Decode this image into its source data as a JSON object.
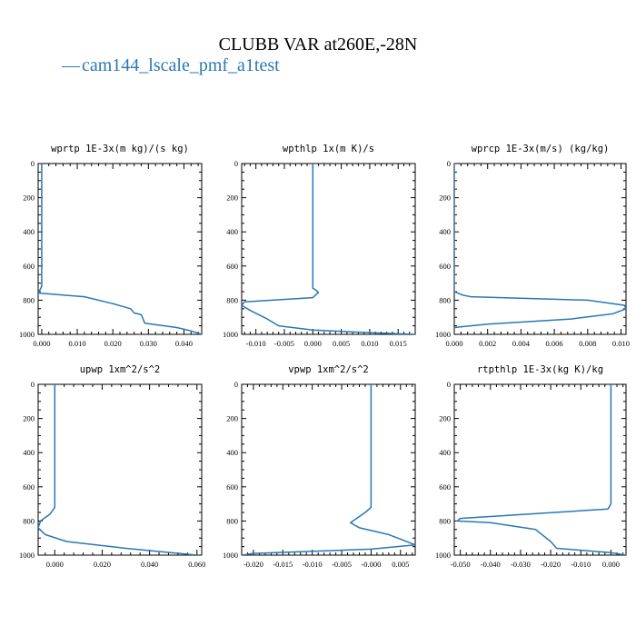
{
  "figure": {
    "title": "CLUBB VAR at260E,-28N",
    "legend": [
      {
        "name": "cam144_lscale_pmf_a1test",
        "marker": "—",
        "color": "#2a77b3"
      }
    ]
  },
  "chart_data": [
    {
      "type": "line",
      "title": "wprtp  1E-3x(m kg)/(s kg)",
      "xlim": [
        -0.001,
        0.045
      ],
      "ylim": [
        1000,
        0
      ],
      "xticks": [
        0.0,
        0.01,
        0.02,
        0.03,
        0.04
      ],
      "xtick_labels": [
        "0.000",
        "0.010",
        "0.020",
        "0.030",
        "0.040"
      ],
      "yticks": [
        0,
        200,
        400,
        600,
        800,
        1000
      ],
      "ytick_labels": [
        "0",
        "200",
        "400",
        "600",
        "800",
        "1000"
      ],
      "series": [
        {
          "color": "#2a77b3",
          "x": [
            0.0,
            0.0,
            0.0,
            0.0,
            -0.001,
            0.012,
            0.02,
            0.025,
            0.026,
            0.027,
            0.028,
            0.029,
            0.038,
            0.042,
            0.045
          ],
          "y": [
            0,
            200,
            400,
            720,
            758,
            780,
            820,
            850,
            875,
            880,
            885,
            935,
            960,
            980,
            1000
          ]
        }
      ]
    },
    {
      "type": "line",
      "title": "wpthlp  1x(m K)/s",
      "xlim": [
        -0.0125,
        0.018
      ],
      "ylim": [
        1000,
        0
      ],
      "xticks": [
        -0.01,
        -0.005,
        0.0,
        0.005,
        0.01,
        0.015
      ],
      "xtick_labels": [
        "-0.010",
        "-0.005",
        "0.000",
        "0.005",
        "0.010",
        "0.015"
      ],
      "yticks": [
        0,
        200,
        400,
        600,
        800,
        1000
      ],
      "ytick_labels": [
        "0",
        "200",
        "400",
        "600",
        "800",
        "1000"
      ],
      "series": [
        {
          "color": "#2a77b3",
          "x": [
            0.0,
            0.0,
            0.0,
            0.0005,
            0.001,
            0.0,
            -0.012,
            -0.0125,
            -0.011,
            -0.008,
            -0.006,
            0.0,
            0.01,
            0.018
          ],
          "y": [
            0,
            300,
            730,
            740,
            755,
            785,
            810,
            830,
            860,
            910,
            950,
            975,
            990,
            1000
          ]
        }
      ]
    },
    {
      "type": "line",
      "title": "wprcp  1E-3x(m/s) (kg/kg)",
      "xlim": [
        0.0,
        0.0103
      ],
      "ylim": [
        1000,
        0
      ],
      "xticks": [
        0.0,
        0.002,
        0.004,
        0.006,
        0.008,
        0.01
      ],
      "xtick_labels": [
        "0.000",
        "0.002",
        "0.004",
        "0.006",
        "0.008",
        "0.010"
      ],
      "yticks": [
        0,
        200,
        400,
        600,
        800,
        1000
      ],
      "ytick_labels": [
        "0",
        "200",
        "400",
        "600",
        "800",
        "1000"
      ],
      "series": [
        {
          "color": "#2a77b3",
          "x": [
            0.0,
            0.0,
            0.0,
            0.0005,
            0.001,
            0.008,
            0.0102,
            0.0103,
            0.0095,
            0.007,
            0.002,
            0.0005,
            0.0
          ],
          "y": [
            0,
            300,
            750,
            770,
            780,
            800,
            830,
            850,
            880,
            910,
            940,
            955,
            960
          ]
        }
      ]
    },
    {
      "type": "line",
      "title": "upwp  1xm^2/s^2",
      "xlim": [
        -0.007,
        0.062
      ],
      "ylim": [
        1000,
        0
      ],
      "xticks": [
        0.0,
        0.02,
        0.04,
        0.06
      ],
      "xtick_labels": [
        "0.000",
        "0.020",
        "0.040",
        "0.060"
      ],
      "yticks": [
        0,
        200,
        400,
        600,
        800,
        1000
      ],
      "ytick_labels": [
        "0",
        "200",
        "400",
        "600",
        "800",
        "1000"
      ],
      "series": [
        {
          "color": "#2a77b3",
          "x": [
            0.0,
            0.0,
            0.0,
            -0.002,
            -0.006,
            -0.007,
            -0.004,
            0.005,
            0.03,
            0.045,
            0.06
          ],
          "y": [
            0,
            300,
            720,
            760,
            800,
            840,
            880,
            920,
            960,
            980,
            1000
          ]
        }
      ]
    },
    {
      "type": "line",
      "title": "vpwp  1xm^2/s^2",
      "xlim": [
        -0.022,
        0.0075
      ],
      "ylim": [
        1000,
        0
      ],
      "xticks": [
        -0.02,
        -0.015,
        -0.01,
        -0.005,
        0.0,
        0.005
      ],
      "xtick_labels": [
        "-0.020",
        "-0.015",
        "-0.010",
        "-0.005",
        "-0.000",
        "0.005"
      ],
      "yticks": [
        0,
        200,
        400,
        600,
        800,
        1000
      ],
      "ytick_labels": [
        "0",
        "200",
        "400",
        "600",
        "800",
        "1000"
      ],
      "series": [
        {
          "color": "#2a77b3",
          "x": [
            0.0,
            0.0,
            0.0,
            -0.001,
            -0.0035,
            -0.002,
            0.003,
            0.0075,
            0.0,
            -0.02,
            -0.022
          ],
          "y": [
            0,
            300,
            720,
            750,
            810,
            840,
            880,
            940,
            965,
            990,
            1000
          ]
        }
      ]
    },
    {
      "type": "line",
      "title": "rtpthlp  1E-3x(kg K)/kg",
      "xlim": [
        -0.052,
        0.005
      ],
      "ylim": [
        1000,
        0
      ],
      "xticks": [
        -0.05,
        -0.04,
        -0.03,
        -0.02,
        -0.01,
        0.0
      ],
      "xtick_labels": [
        "-0.050",
        "-0.040",
        "-0.030",
        "-0.020",
        "-0.010",
        "0.000"
      ],
      "yticks": [
        0,
        200,
        400,
        600,
        800,
        1000
      ],
      "ytick_labels": [
        "0",
        "200",
        "400",
        "600",
        "800",
        "1000"
      ],
      "series": [
        {
          "color": "#2a77b3",
          "x": [
            0.0,
            0.0,
            0.0,
            -0.001,
            -0.05,
            -0.051,
            -0.04,
            -0.025,
            -0.02,
            -0.018,
            0.0,
            0.005
          ],
          "y": [
            0,
            300,
            700,
            730,
            785,
            800,
            810,
            850,
            920,
            960,
            985,
            1000
          ]
        }
      ]
    }
  ]
}
